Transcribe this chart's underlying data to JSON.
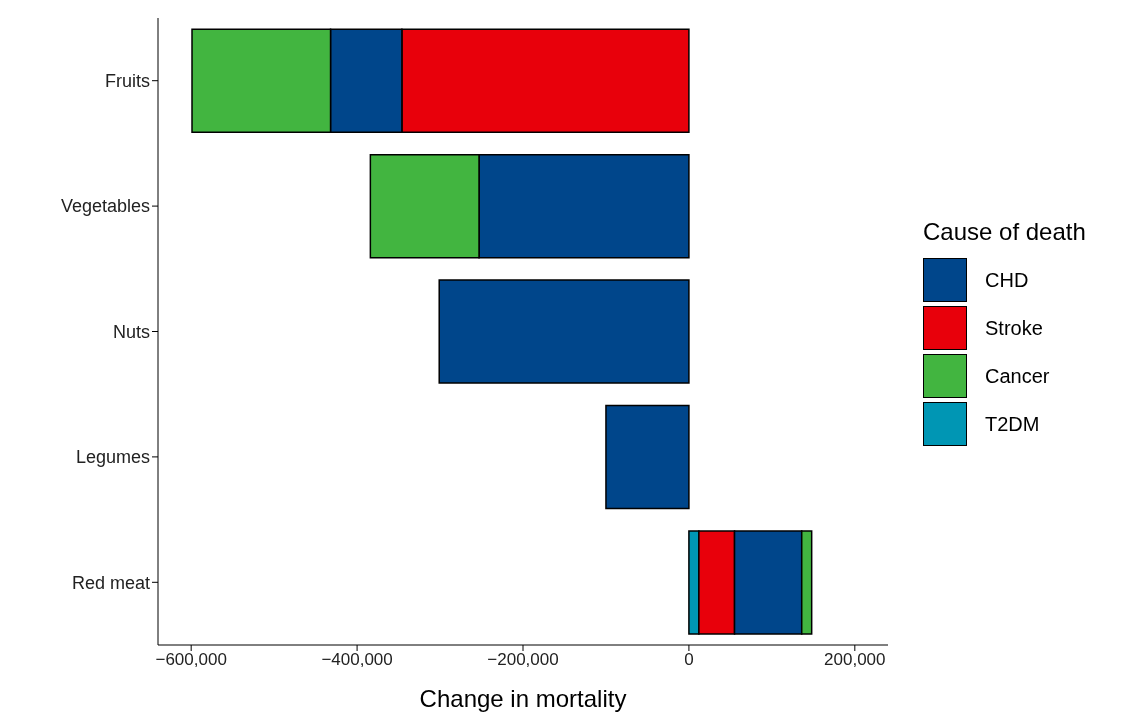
{
  "chart_data": {
    "type": "bar",
    "orientation": "horizontal",
    "stacked": true,
    "xlabel": "Change in mortality",
    "legend_title": "Cause of death",
    "legend": "right",
    "categories": [
      "Fruits",
      "Vegetables",
      "Nuts",
      "Legumes",
      "Red meat"
    ],
    "series": [
      {
        "name": "T2DM",
        "color": "#0096b4",
        "values": [
          null,
          null,
          null,
          null,
          12000
        ]
      },
      {
        "name": "Stroke",
        "color": "#e8000b",
        "values": [
          -346000,
          null,
          null,
          null,
          43000
        ]
      },
      {
        "name": "CHD",
        "color": "#00468b",
        "values": [
          -86000,
          -253000,
          -301000,
          -100000,
          81000
        ]
      },
      {
        "name": "Cancer",
        "color": "#42b540",
        "values": [
          -167000,
          -131000,
          null,
          null,
          12000
        ]
      }
    ],
    "xlim": [
      -640000,
      240000
    ],
    "xticks": [
      {
        "value": -600000,
        "label": "−600,000"
      },
      {
        "value": -400000,
        "label": "−400,000"
      },
      {
        "value": -200000,
        "label": "−200,000"
      },
      0,
      {
        "value": 200000,
        "label": "200,000"
      }
    ]
  }
}
